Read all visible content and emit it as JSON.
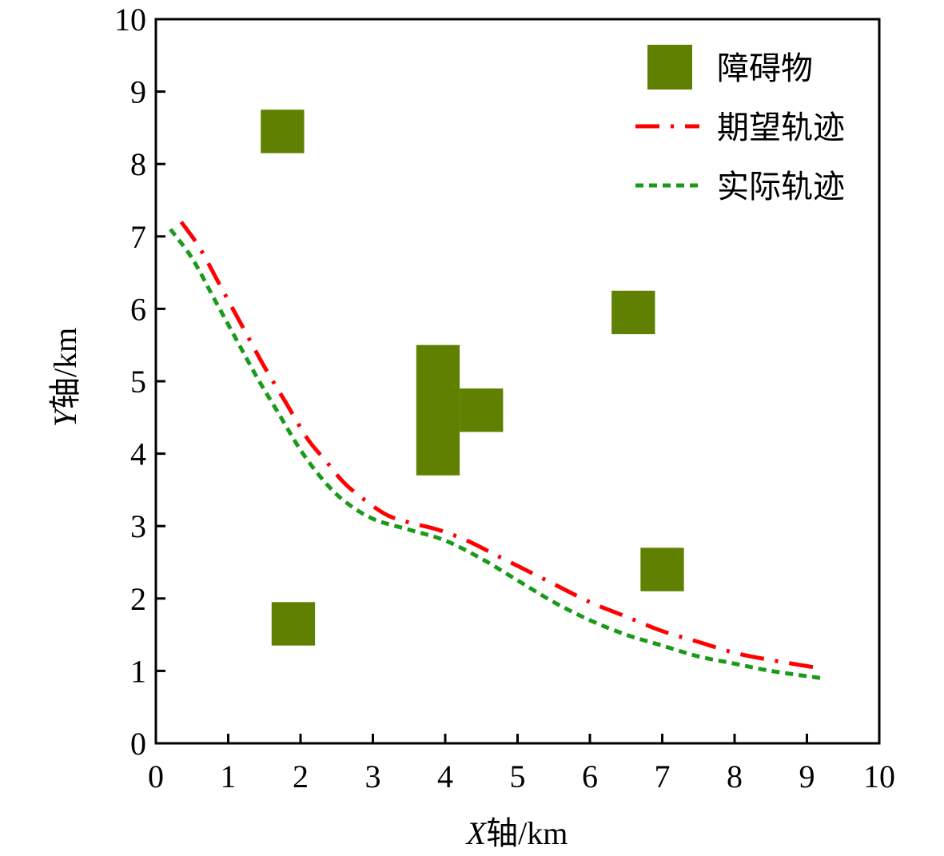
{
  "chart_data": {
    "type": "scatter",
    "title": "",
    "xlabel": {
      "italic": "X",
      "rest": "轴/km"
    },
    "ylabel": {
      "italic": "Y",
      "rest": "轴/km"
    },
    "xlim": [
      0,
      10
    ],
    "ylim": [
      0,
      10
    ],
    "xticks": [
      "0",
      "1",
      "2",
      "3",
      "4",
      "5",
      "6",
      "7",
      "8",
      "9",
      "10"
    ],
    "yticks": [
      "0",
      "1",
      "2",
      "3",
      "4",
      "5",
      "6",
      "7",
      "8",
      "9",
      "10"
    ],
    "grid": false,
    "legend_position": "top-right",
    "legend": [
      {
        "label": "障碍物",
        "kind": "square"
      },
      {
        "label": "期望轨迹",
        "kind": "dashdot"
      },
      {
        "label": "实际轨迹",
        "kind": "dotted"
      }
    ],
    "colors": {
      "obstacle": "#5f8000",
      "expected": "#ff0000",
      "actual": "#1a9a1a"
    },
    "obstacles": [
      {
        "x0": 1.45,
        "x1": 2.05,
        "y0": 8.15,
        "y1": 8.75
      },
      {
        "x0": 1.6,
        "x1": 2.2,
        "y0": 1.35,
        "y1": 1.95
      },
      {
        "x0": 3.6,
        "x1": 4.2,
        "y0": 3.7,
        "y1": 5.5
      },
      {
        "x0": 4.2,
        "x1": 4.8,
        "y0": 4.3,
        "y1": 4.9
      },
      {
        "x0": 6.3,
        "x1": 6.9,
        "y0": 5.65,
        "y1": 6.25
      },
      {
        "x0": 6.7,
        "x1": 7.3,
        "y0": 2.1,
        "y1": 2.7
      }
    ],
    "series": [
      {
        "name": "期望轨迹",
        "x": [
          0.35,
          0.6,
          0.9,
          1.2,
          1.5,
          1.8,
          2.1,
          2.35,
          2.6,
          2.9,
          3.2,
          3.5,
          3.9,
          4.3,
          4.7,
          5.1,
          5.5,
          6.0,
          6.5,
          7.0,
          7.5,
          8.0,
          8.5,
          9.1
        ],
        "y": [
          7.2,
          6.85,
          6.3,
          5.75,
          5.2,
          4.7,
          4.2,
          3.9,
          3.6,
          3.35,
          3.15,
          3.05,
          2.95,
          2.8,
          2.6,
          2.4,
          2.2,
          1.95,
          1.75,
          1.55,
          1.4,
          1.25,
          1.15,
          1.05
        ]
      },
      {
        "name": "实际轨迹",
        "x": [
          0.2,
          0.5,
          0.8,
          1.1,
          1.4,
          1.7,
          2.0,
          2.3,
          2.6,
          3.0,
          3.5,
          4.0,
          4.5,
          5.0,
          5.5,
          6.0,
          6.5,
          7.0,
          7.5,
          8.0,
          8.5,
          9.2
        ],
        "y": [
          7.1,
          6.7,
          6.15,
          5.6,
          5.05,
          4.55,
          4.05,
          3.65,
          3.35,
          3.1,
          2.95,
          2.8,
          2.55,
          2.25,
          1.95,
          1.7,
          1.5,
          1.35,
          1.2,
          1.1,
          1.0,
          0.9
        ]
      }
    ]
  }
}
